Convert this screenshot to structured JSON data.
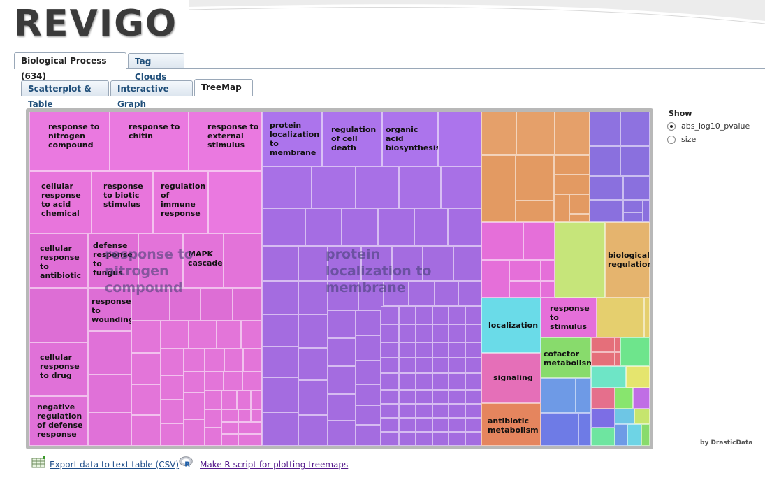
{
  "brand": {
    "logo_text": "REVIGO"
  },
  "ontology_tabs": [
    {
      "label": "Biological Process (634)",
      "active": true
    },
    {
      "label": "Tag Clouds",
      "active": false
    }
  ],
  "view_tabs": [
    {
      "label": "Scatterplot & Table",
      "active": false
    },
    {
      "label": "Interactive Graph",
      "active": false
    },
    {
      "label": "TreeMap",
      "active": true
    }
  ],
  "treemap": {
    "overlay_labels": {
      "pink_group": "response to nitrogen compound",
      "purple_group": "protein localization to membrane"
    },
    "cell_labels": {
      "c1": "response to nitrogen compound",
      "c2": "response to chitin",
      "c3": "response to external stimulus",
      "c4": "cellular response to acid chemical",
      "c5": "response to biotic stimulus",
      "c6": "regulation of immune response",
      "c7": "cellular response to antibiotic",
      "c8": "defense response to fungus",
      "c9": "MAPK cascade",
      "c10": "response to wounding",
      "c11": "cellular response to drug",
      "c12": "negative regulation of defense response",
      "c13": "protein localization to membrane",
      "c14": "regulation of cell death",
      "c15": "organic acid biosynthesis",
      "c16": "biological regulation",
      "c17": "localization",
      "c18": "response to stimulus",
      "c19": "cofactor metabolism",
      "c20": "signaling",
      "c21": "antibiotic metabolism"
    },
    "colors": {
      "pink": "#e56fd9",
      "purple": "#a672e8",
      "orange": "#e59a5e",
      "violet": "#8d73e0",
      "cyan": "#6ddbe6",
      "green": "#88db6c"
    }
  },
  "show_panel": {
    "title": "Show",
    "options": [
      {
        "label": "abs_log10_pvalue",
        "selected": true
      },
      {
        "label": "size",
        "selected": false
      }
    ]
  },
  "credit": "by DrasticData",
  "footer": {
    "export_label": "Export data to text table (CSV)",
    "rscript_label": "Make R script for plotting treemaps"
  }
}
